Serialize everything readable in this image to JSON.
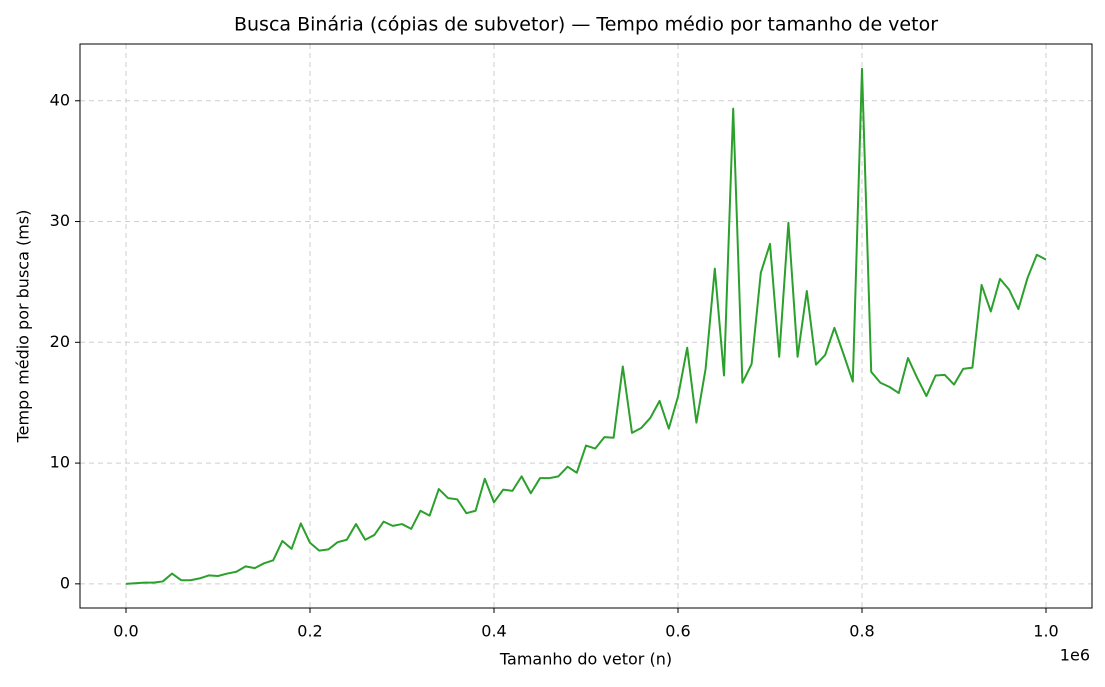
{
  "chart_data": {
    "type": "line",
    "title": "Busca Binária (cópias de subvetor) — Tempo médio por tamanho de vetor",
    "x_label": "Tamanho do vetor (n)",
    "y_label": "Tempo médio por busca (ms)",
    "x_offset_label": "1e6",
    "x": [
      0,
      10000,
      20000,
      30000,
      40000,
      50000,
      60000,
      70000,
      80000,
      90000,
      100000,
      110000,
      120000,
      130000,
      140000,
      150000,
      160000,
      170000,
      180000,
      190000,
      200000,
      210000,
      220000,
      230000,
      240000,
      250000,
      260000,
      270000,
      280000,
      290000,
      300000,
      310000,
      320000,
      330000,
      340000,
      350000,
      360000,
      370000,
      380000,
      390000,
      400000,
      410000,
      420000,
      430000,
      440000,
      450000,
      460000,
      470000,
      480000,
      490000,
      500000,
      510000,
      520000,
      530000,
      540000,
      550000,
      560000,
      570000,
      580000,
      590000,
      600000,
      610000,
      620000,
      630000,
      640000,
      650000,
      660000,
      670000,
      680000,
      690000,
      700000,
      710000,
      720000,
      730000,
      740000,
      750000,
      760000,
      770000,
      780000,
      790000,
      800000,
      810000,
      820000,
      830000,
      840000,
      850000,
      860000,
      870000,
      880000,
      890000,
      900000,
      910000,
      920000,
      930000,
      940000,
      950000,
      960000,
      970000,
      980000,
      990000,
      1000000
    ],
    "series": [
      {
        "name": "Tempo médio",
        "color": "#2ca02c",
        "values": [
          0.0,
          0.05,
          0.1,
          0.1,
          0.2,
          0.85,
          0.3,
          0.3,
          0.45,
          0.7,
          0.65,
          0.85,
          1.0,
          1.45,
          1.3,
          1.7,
          1.95,
          3.55,
          2.9,
          5.0,
          3.4,
          2.75,
          2.85,
          3.45,
          3.65,
          4.95,
          3.65,
          4.05,
          5.15,
          4.8,
          4.95,
          4.55,
          6.05,
          5.65,
          7.85,
          7.1,
          7.0,
          5.85,
          6.05,
          8.7,
          6.75,
          7.8,
          7.7,
          8.9,
          7.5,
          8.75,
          8.75,
          8.9,
          9.7,
          9.2,
          11.45,
          11.2,
          12.15,
          12.1,
          18.0,
          12.5,
          12.9,
          13.75,
          15.15,
          12.85,
          15.5,
          19.55,
          13.35,
          17.8,
          26.1,
          17.25,
          39.35,
          16.65,
          18.2,
          25.75,
          28.15,
          18.8,
          29.9,
          18.8,
          24.25,
          18.15,
          18.95,
          21.2,
          19.0,
          16.75,
          42.65,
          17.55,
          16.65,
          16.3,
          15.8,
          18.7,
          17.05,
          15.55,
          17.25,
          17.3,
          16.5,
          17.8,
          17.9,
          24.75,
          22.55,
          25.25,
          24.35,
          22.75,
          25.35,
          27.25,
          26.85
        ]
      }
    ],
    "xlim": [
      -50000,
      1050000
    ],
    "ylim": [
      -2,
      44.7
    ],
    "xticks": [
      {
        "value": 0,
        "label": "0.0"
      },
      {
        "value": 200000,
        "label": "0.2"
      },
      {
        "value": 400000,
        "label": "0.4"
      },
      {
        "value": 600000,
        "label": "0.6"
      },
      {
        "value": 800000,
        "label": "0.8"
      },
      {
        "value": 1000000,
        "label": "1.0"
      }
    ],
    "yticks": [
      0,
      10,
      20,
      30,
      40
    ],
    "grid": true
  }
}
